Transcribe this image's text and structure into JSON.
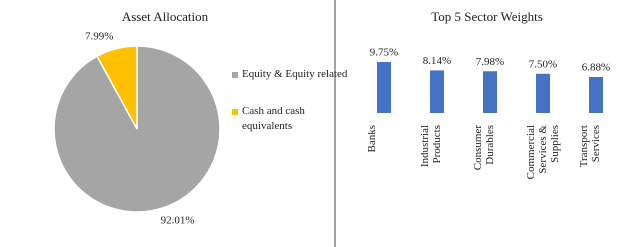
{
  "chart_data": [
    {
      "type": "pie",
      "title": "Asset Allocation",
      "categories": [
        "Equity & Equity related",
        "Cash and cash equivalents"
      ],
      "values": [
        92.01,
        7.99
      ],
      "value_labels": [
        "92.01%",
        "7.99%"
      ],
      "colors": [
        "#a5a5a5",
        "#ffc000"
      ],
      "legend": "right"
    },
    {
      "type": "bar",
      "title": "Top 5 Sector Weights",
      "categories": [
        "Banks",
        "Industrial Products",
        "Consumer Durables",
        "Commercial Services & Supplies",
        "Transport Services"
      ],
      "values": [
        9.75,
        8.14,
        7.98,
        7.5,
        6.88
      ],
      "value_labels": [
        "9.75%",
        "8.14%",
        "7.98%",
        "7.50%",
        "6.88%"
      ],
      "color": "#4472c4"
    }
  ]
}
